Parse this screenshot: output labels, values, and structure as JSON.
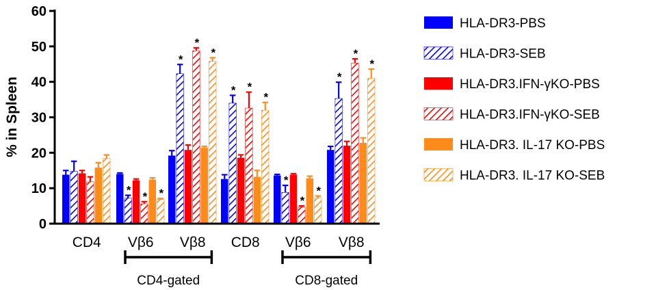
{
  "chart_data": {
    "type": "bar",
    "ylabel": "% in Spleen",
    "ylim": [
      0,
      60
    ],
    "yticks": [
      0,
      10,
      20,
      30,
      40,
      50,
      60
    ],
    "categories": [
      "CD4",
      "Vβ6",
      "Vβ8",
      "CD8",
      "Vβ6",
      "Vβ8"
    ],
    "groups": [
      {
        "label": "CD4-gated",
        "from": 1,
        "to": 2
      },
      {
        "label": "CD8-gated",
        "from": 4,
        "to": 5
      }
    ],
    "series": [
      {
        "name": "HLA-DR3-PBS",
        "color": "#0000ff",
        "pattern": "solid",
        "values": [
          13.8,
          14.0,
          19.2,
          12.6,
          13.6,
          20.8
        ],
        "errors": [
          1.2,
          0.3,
          1.4,
          1.2,
          0.3,
          1.0
        ],
        "sig": [
          false,
          false,
          false,
          false,
          false,
          false
        ]
      },
      {
        "name": "HLA-DR3-SEB",
        "color": "#0000ff",
        "pattern": "hatch",
        "values": [
          14.8,
          7.2,
          42.3,
          34.0,
          8.8,
          35.3
        ],
        "errors": [
          2.8,
          0.8,
          2.6,
          2.2,
          2.0,
          4.6
        ],
        "sig": [
          false,
          true,
          true,
          true,
          true,
          true
        ]
      },
      {
        "name": "HLA-DR3.IFN-γKO-PBS",
        "color": "#ff0000",
        "pattern": "solid",
        "values": [
          14.2,
          12.2,
          20.8,
          18.6,
          13.8,
          22.0
        ],
        "errors": [
          0.8,
          0.4,
          1.4,
          0.8,
          0.3,
          1.2
        ],
        "sig": [
          false,
          false,
          false,
          false,
          false,
          false
        ]
      },
      {
        "name": "HLA-DR3.IFN-γKO-SEB",
        "color": "#ff0000",
        "pattern": "hatch",
        "values": [
          11.8,
          5.6,
          48.8,
          32.6,
          4.6,
          45.3
        ],
        "errors": [
          1.4,
          0.6,
          0.8,
          4.5,
          0.4,
          1.2
        ],
        "sig": [
          false,
          true,
          true,
          true,
          true,
          true
        ]
      },
      {
        "name": "HLA-DR3. IL-17 KO-PBS",
        "color": "#ff8c1a",
        "pattern": "solid",
        "values": [
          15.8,
          12.4,
          21.4,
          13.2,
          12.8,
          22.8
        ],
        "errors": [
          1.4,
          0.5,
          0.4,
          1.8,
          0.6,
          1.4
        ],
        "sig": [
          false,
          false,
          false,
          false,
          false,
          false
        ]
      },
      {
        "name": "HLA-DR3. IL-17 KO-SEB",
        "color": "#ff8c1a",
        "pattern": "hatch",
        "values": [
          18.4,
          6.8,
          45.8,
          32.0,
          7.2,
          41.0
        ],
        "errors": [
          1.0,
          0.3,
          1.0,
          2.2,
          0.6,
          2.6
        ],
        "sig": [
          false,
          true,
          true,
          true,
          true,
          true
        ]
      }
    ]
  }
}
